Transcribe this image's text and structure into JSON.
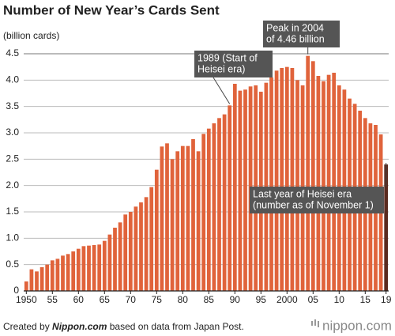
{
  "chart_data": {
    "type": "bar",
    "title": "Number of New Year’s Cards Sent",
    "y_axis_label": "(billion cards)",
    "categories": [
      "1950",
      null,
      null,
      null,
      null,
      "55",
      null,
      null,
      null,
      null,
      "60",
      null,
      null,
      null,
      null,
      "65",
      null,
      null,
      null,
      null,
      "70",
      null,
      null,
      null,
      null,
      "75",
      null,
      null,
      null,
      null,
      "80",
      null,
      null,
      null,
      null,
      "85",
      null,
      null,
      null,
      null,
      "90",
      null,
      null,
      null,
      null,
      "95",
      null,
      null,
      null,
      null,
      "2000",
      null,
      null,
      null,
      null,
      "05",
      null,
      null,
      null,
      null,
      "10",
      null,
      null,
      null,
      null,
      "15",
      null,
      null,
      null,
      "19"
    ],
    "values": [
      0.18,
      0.41,
      0.37,
      0.45,
      0.5,
      0.58,
      0.61,
      0.67,
      0.7,
      0.75,
      0.8,
      0.85,
      0.86,
      0.87,
      0.88,
      0.95,
      1.07,
      1.2,
      1.3,
      1.45,
      1.5,
      1.6,
      1.68,
      1.78,
      1.97,
      2.3,
      2.74,
      2.8,
      2.5,
      2.65,
      2.75,
      2.75,
      2.88,
      2.65,
      2.98,
      3.08,
      3.18,
      3.28,
      3.35,
      3.52,
      3.93,
      3.8,
      3.82,
      3.88,
      3.9,
      3.78,
      3.95,
      4.05,
      4.18,
      4.23,
      4.25,
      4.23,
      4.0,
      3.9,
      4.46,
      4.36,
      4.08,
      3.98,
      4.1,
      4.14,
      3.9,
      3.82,
      3.65,
      3.55,
      3.42,
      3.28,
      3.18,
      3.15,
      2.97,
      2.4
    ],
    "color": "#e0633b",
    "highlight": {
      "index": 69,
      "color": "#5a2a1f"
    },
    "ylim": [
      0,
      4.5
    ],
    "yticks": [
      0,
      0.5,
      {
        "value": 1,
        "label": "1.0"
      },
      1.5,
      {
        "value": 2,
        "label": "2.0"
      },
      2.5,
      {
        "value": 3,
        "label": "3.0"
      },
      3.5,
      {
        "value": 4,
        "label": "4.0"
      },
      4.5
    ],
    "grid": true,
    "annotations": [
      {
        "lines": [
          "1989 (Start of",
          "Heisei era)"
        ]
      },
      {
        "lines": [
          "Peak in 2004",
          "of 4.46 billion"
        ]
      },
      {
        "lines": [
          "Last year of Heisei era",
          "(number as of November 1)"
        ]
      }
    ],
    "footer": {
      "prefix": "Created by",
      "source_name": "Nippon.com",
      "suffix": "based on data from Japan Post."
    },
    "logo": "nippon.com"
  }
}
